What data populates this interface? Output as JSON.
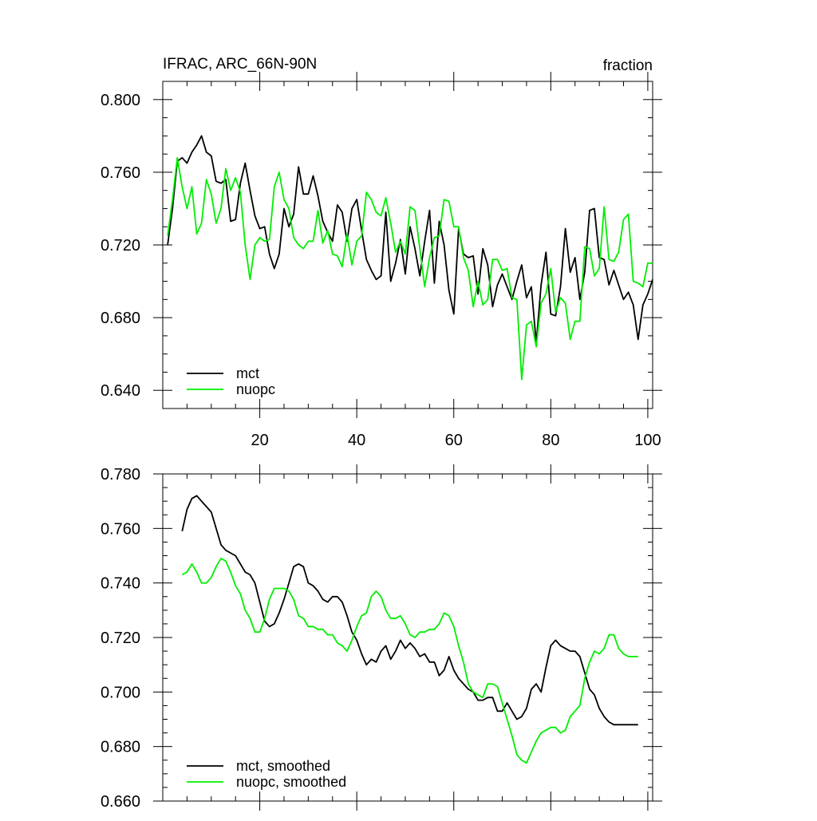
{
  "colors": {
    "mct": "#000000",
    "nuopc": "#00ee00",
    "axis": "#000000",
    "background": "#ffffff"
  },
  "chart_data": [
    {
      "type": "line",
      "title": "IFRAC, ARC_66N-90N",
      "units": "fraction",
      "xlabel": "",
      "ylabel": "",
      "xlim": [
        0,
        101
      ],
      "ylim": [
        0.63,
        0.81
      ],
      "xticks": [
        "20",
        "40",
        "60",
        "80",
        "100"
      ],
      "yticks": [
        "0.640",
        "0.680",
        "0.720",
        "0.760",
        "0.800"
      ],
      "grid": false,
      "legend_position": "bottom-left",
      "x": [
        1,
        2,
        3,
        4,
        5,
        6,
        7,
        8,
        9,
        10,
        11,
        12,
        13,
        14,
        15,
        16,
        17,
        18,
        19,
        20,
        21,
        22,
        23,
        24,
        25,
        26,
        27,
        28,
        29,
        30,
        31,
        32,
        33,
        34,
        35,
        36,
        37,
        38,
        39,
        40,
        41,
        42,
        43,
        44,
        45,
        46,
        47,
        48,
        49,
        50,
        51,
        52,
        53,
        54,
        55,
        56,
        57,
        58,
        59,
        60,
        61,
        62,
        63,
        64,
        65,
        66,
        67,
        68,
        69,
        70,
        71,
        72,
        73,
        74,
        75,
        76,
        77,
        78,
        79,
        80,
        81,
        82,
        83,
        84,
        85,
        86,
        87,
        88,
        89,
        90,
        91,
        92,
        93,
        94,
        95,
        96,
        97,
        98,
        99,
        100,
        101
      ],
      "series": [
        {
          "name": "mct",
          "color": "#000000",
          "values": [
            0.72,
            0.74,
            0.766,
            0.768,
            0.765,
            0.771,
            0.775,
            0.78,
            0.771,
            0.769,
            0.755,
            0.754,
            0.756,
            0.733,
            0.734,
            0.754,
            0.765,
            0.75,
            0.736,
            0.729,
            0.73,
            0.715,
            0.707,
            0.715,
            0.74,
            0.73,
            0.737,
            0.763,
            0.748,
            0.748,
            0.758,
            0.747,
            0.733,
            0.727,
            0.722,
            0.742,
            0.738,
            0.722,
            0.74,
            0.745,
            0.728,
            0.712,
            0.706,
            0.701,
            0.703,
            0.738,
            0.7,
            0.71,
            0.723,
            0.704,
            0.73,
            0.718,
            0.703,
            0.722,
            0.739,
            0.699,
            0.733,
            0.72,
            0.695,
            0.682,
            0.729,
            0.715,
            0.713,
            0.714,
            0.693,
            0.718,
            0.709,
            0.686,
            0.698,
            0.704,
            0.697,
            0.69,
            0.7,
            0.709,
            0.691,
            0.697,
            0.666,
            0.698,
            0.716,
            0.682,
            0.681,
            0.697,
            0.729,
            0.705,
            0.713,
            0.69,
            0.705,
            0.739,
            0.74,
            0.713,
            0.712,
            0.698,
            0.706,
            0.698,
            0.69,
            0.694,
            0.687,
            0.668,
            0.687,
            0.693,
            0.701
          ]
        },
        {
          "name": "nuopc",
          "color": "#00ee00",
          "values": [
            0.725,
            0.745,
            0.768,
            0.752,
            0.74,
            0.752,
            0.726,
            0.732,
            0.756,
            0.748,
            0.732,
            0.74,
            0.762,
            0.75,
            0.757,
            0.749,
            0.72,
            0.701,
            0.72,
            0.724,
            0.722,
            0.723,
            0.752,
            0.76,
            0.745,
            0.74,
            0.724,
            0.72,
            0.718,
            0.722,
            0.722,
            0.739,
            0.721,
            0.728,
            0.715,
            0.714,
            0.708,
            0.726,
            0.709,
            0.722,
            0.725,
            0.749,
            0.745,
            0.738,
            0.736,
            0.746,
            0.732,
            0.716,
            0.722,
            0.715,
            0.741,
            0.739,
            0.718,
            0.697,
            0.713,
            0.724,
            0.725,
            0.745,
            0.744,
            0.73,
            0.73,
            0.713,
            0.706,
            0.686,
            0.7,
            0.687,
            0.69,
            0.712,
            0.712,
            0.706,
            0.707,
            0.691,
            0.69,
            0.646,
            0.676,
            0.678,
            0.664,
            0.688,
            0.693,
            0.707,
            0.683,
            0.691,
            0.688,
            0.668,
            0.678,
            0.678,
            0.719,
            0.718,
            0.703,
            0.707,
            0.741,
            0.712,
            0.711,
            0.716,
            0.734,
            0.737,
            0.7,
            0.699,
            0.697,
            0.71,
            0.71
          ]
        }
      ],
      "legend": [
        "mct",
        "nuopc"
      ]
    },
    {
      "type": "line",
      "title": "",
      "xlabel": "",
      "ylabel": "",
      "xlim": [
        0,
        101
      ],
      "ylim": [
        0.66,
        0.78
      ],
      "xticks": [],
      "yticks": [
        "0.660",
        "0.680",
        "0.700",
        "0.720",
        "0.740",
        "0.760",
        "0.780"
      ],
      "grid": false,
      "legend_position": "bottom-left",
      "x": [
        4,
        5,
        6,
        7,
        8,
        9,
        10,
        11,
        12,
        13,
        14,
        15,
        16,
        17,
        18,
        19,
        20,
        21,
        22,
        23,
        24,
        25,
        26,
        27,
        28,
        29,
        30,
        31,
        32,
        33,
        34,
        35,
        36,
        37,
        38,
        39,
        40,
        41,
        42,
        43,
        44,
        45,
        46,
        47,
        48,
        49,
        50,
        51,
        52,
        53,
        54,
        55,
        56,
        57,
        58,
        59,
        60,
        61,
        62,
        63,
        64,
        65,
        66,
        67,
        68,
        69,
        70,
        71,
        72,
        73,
        74,
        75,
        76,
        77,
        78,
        79,
        80,
        81,
        82,
        83,
        84,
        85,
        86,
        87,
        88,
        89,
        90,
        91,
        92,
        93,
        94,
        95,
        96,
        97,
        98
      ],
      "series": [
        {
          "name": "mct, smoothed",
          "color": "#000000",
          "values": [
            0.759,
            0.767,
            0.771,
            0.772,
            0.77,
            0.768,
            0.766,
            0.76,
            0.754,
            0.752,
            0.751,
            0.75,
            0.747,
            0.744,
            0.743,
            0.74,
            0.733,
            0.726,
            0.724,
            0.725,
            0.729,
            0.734,
            0.74,
            0.746,
            0.747,
            0.746,
            0.74,
            0.739,
            0.737,
            0.734,
            0.733,
            0.735,
            0.735,
            0.733,
            0.728,
            0.722,
            0.719,
            0.714,
            0.71,
            0.712,
            0.711,
            0.715,
            0.717,
            0.712,
            0.715,
            0.719,
            0.716,
            0.718,
            0.716,
            0.713,
            0.714,
            0.711,
            0.711,
            0.706,
            0.708,
            0.713,
            0.708,
            0.705,
            0.703,
            0.701,
            0.7,
            0.697,
            0.697,
            0.698,
            0.698,
            0.693,
            0.693,
            0.696,
            0.693,
            0.69,
            0.691,
            0.694,
            0.701,
            0.703,
            0.7,
            0.709,
            0.717,
            0.719,
            0.717,
            0.716,
            0.715,
            0.715,
            0.713,
            0.707,
            0.701,
            0.699,
            0.694,
            0.691,
            0.689,
            0.688,
            0.688,
            0.688,
            0.688,
            0.688,
            0.688
          ]
        },
        {
          "name": "nuopc, smoothed",
          "color": "#00ee00",
          "values": [
            0.743,
            0.744,
            0.747,
            0.744,
            0.74,
            0.74,
            0.742,
            0.746,
            0.749,
            0.748,
            0.744,
            0.739,
            0.736,
            0.73,
            0.727,
            0.722,
            0.722,
            0.727,
            0.734,
            0.738,
            0.738,
            0.738,
            0.737,
            0.734,
            0.728,
            0.727,
            0.724,
            0.724,
            0.723,
            0.723,
            0.721,
            0.721,
            0.718,
            0.717,
            0.715,
            0.719,
            0.724,
            0.728,
            0.729,
            0.735,
            0.737,
            0.735,
            0.73,
            0.727,
            0.727,
            0.728,
            0.725,
            0.721,
            0.72,
            0.722,
            0.722,
            0.723,
            0.723,
            0.725,
            0.729,
            0.728,
            0.724,
            0.717,
            0.711,
            0.703,
            0.7,
            0.699,
            0.698,
            0.703,
            0.703,
            0.702,
            0.696,
            0.69,
            0.684,
            0.677,
            0.675,
            0.674,
            0.678,
            0.682,
            0.685,
            0.686,
            0.687,
            0.687,
            0.685,
            0.686,
            0.691,
            0.693,
            0.695,
            0.705,
            0.711,
            0.715,
            0.714,
            0.716,
            0.721,
            0.721,
            0.716,
            0.714,
            0.713,
            0.713,
            0.713
          ]
        }
      ],
      "legend": [
        "mct, smoothed",
        "nuopc, smoothed"
      ]
    }
  ]
}
